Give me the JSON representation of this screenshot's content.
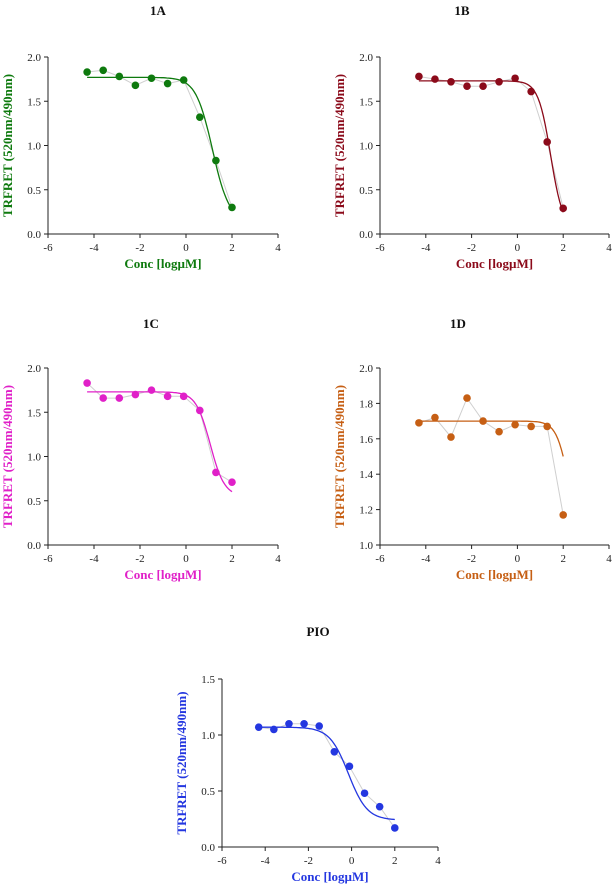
{
  "chart_data": [
    {
      "id": "1A",
      "type": "scatter",
      "title": "1A",
      "xlabel": "Conc [logµM]",
      "ylabel": "TRFRET (520nm/490nm)",
      "xlim": [
        -6,
        4
      ],
      "ylim": [
        0,
        2.0
      ],
      "xticks": [
        -6,
        -4,
        -2,
        0,
        2,
        4
      ],
      "yticks": [
        0,
        0.5,
        1.0,
        1.5,
        2.0
      ],
      "xtick_labels": [
        "-6",
        "-4",
        "-2",
        "0",
        "2",
        "4"
      ],
      "ytick_labels": [
        "0.0",
        "0.5",
        "1.0",
        "1.5",
        "2.0"
      ],
      "color": "#0e7a0e",
      "x": [
        -4.3,
        -3.6,
        -2.9,
        -2.2,
        -1.5,
        -0.8,
        -0.1,
        0.6,
        1.3,
        2.0
      ],
      "y": [
        1.83,
        1.85,
        1.78,
        1.68,
        1.76,
        1.7,
        1.74,
        1.32,
        0.83,
        0.3
      ],
      "fit": {
        "top": 1.77,
        "bottom": 0.14,
        "logEC50": 1.15,
        "hill": 1.2
      }
    },
    {
      "id": "1B",
      "type": "scatter",
      "title": "1B",
      "xlabel": "Conc [logµM]",
      "ylabel": "TRFRET (520nm/490nm)",
      "xlim": [
        -6,
        4
      ],
      "ylim": [
        0,
        2.0
      ],
      "xticks": [
        -6,
        -4,
        -2,
        0,
        2,
        4
      ],
      "yticks": [
        0,
        0.5,
        1.0,
        1.5,
        2.0
      ],
      "xtick_labels": [
        "-6",
        "-4",
        "-2",
        "0",
        "2",
        "4"
      ],
      "ytick_labels": [
        "0.0",
        "0.5",
        "1.0",
        "1.5",
        "2.0"
      ],
      "color": "#8b0a1a",
      "x": [
        -4.3,
        -3.6,
        -2.9,
        -2.2,
        -1.5,
        -0.8,
        -0.1,
        0.6,
        1.3,
        2.0
      ],
      "y": [
        1.78,
        1.75,
        1.72,
        1.67,
        1.67,
        1.72,
        1.76,
        1.61,
        1.04,
        0.29
      ],
      "fit": {
        "top": 1.73,
        "bottom": 0.05,
        "logEC50": 1.45,
        "hill": 1.6
      }
    },
    {
      "id": "1C",
      "type": "scatter",
      "title": "1C",
      "xlabel": "Conc [logµM]",
      "ylabel": "TRFRET (520nm/490nm)",
      "xlim": [
        -6,
        4
      ],
      "ylim": [
        0,
        2.0
      ],
      "xticks": [
        -6,
        -4,
        -2,
        0,
        2,
        4
      ],
      "yticks": [
        0,
        0.5,
        1.0,
        1.5,
        2.0
      ],
      "xtick_labels": [
        "-6",
        "-4",
        "-2",
        "0",
        "2",
        "4"
      ],
      "ytick_labels": [
        "0.0",
        "0.5",
        "1.0",
        "1.5",
        "2.0"
      ],
      "color": "#e020c8",
      "x": [
        -4.3,
        -3.6,
        -2.9,
        -2.2,
        -1.5,
        -0.8,
        -0.1,
        0.6,
        1.3,
        2.0
      ],
      "y": [
        1.83,
        1.66,
        1.66,
        1.7,
        1.75,
        1.68,
        1.68,
        1.52,
        0.82,
        0.71
      ],
      "fit": {
        "top": 1.73,
        "bottom": 0.55,
        "logEC50": 1.05,
        "hill": 1.4
      }
    },
    {
      "id": "1D",
      "type": "scatter",
      "title": "1D",
      "xlabel": "Conc [logµM]",
      "ylabel": "TRFRET (520nm/490nm)",
      "xlim": [
        -6,
        4
      ],
      "ylim": [
        1.0,
        2.0
      ],
      "xticks": [
        -6,
        -4,
        -2,
        0,
        2,
        4
      ],
      "yticks": [
        1.0,
        1.2,
        1.4,
        1.6,
        1.8,
        2.0
      ],
      "xtick_labels": [
        "-6",
        "-4",
        "-2",
        "0",
        "2",
        "4"
      ],
      "ytick_labels": [
        "1.0",
        "1.2",
        "1.4",
        "1.6",
        "1.8",
        "2.0"
      ],
      "color": "#c65f14",
      "x": [
        -4.3,
        -3.6,
        -2.9,
        -2.2,
        -1.5,
        -0.8,
        -0.1,
        0.6,
        1.3,
        2.0
      ],
      "y": [
        1.69,
        1.72,
        1.61,
        1.83,
        1.7,
        1.64,
        1.68,
        1.67,
        1.67,
        1.17
      ],
      "fit": {
        "top": 1.7,
        "bottom": 1.0,
        "logEC50": 2.25,
        "hill": 1.6
      }
    },
    {
      "id": "PIO",
      "type": "scatter",
      "title": "PIO",
      "xlabel": "Conc [logµM]",
      "ylabel": "TRFRET (520nm/490nm)",
      "xlim": [
        -6,
        4
      ],
      "ylim": [
        0,
        1.5
      ],
      "xticks": [
        -6,
        -4,
        -2,
        0,
        2,
        4
      ],
      "yticks": [
        0,
        0.5,
        1.0,
        1.5
      ],
      "xtick_labels": [
        "-6",
        "-4",
        "-2",
        "0",
        "2",
        "4"
      ],
      "ytick_labels": [
        "0.0",
        "0.5",
        "1.0",
        "1.5"
      ],
      "color": "#2437e0",
      "x": [
        -4.3,
        -3.6,
        -2.9,
        -2.2,
        -1.5,
        -0.8,
        -0.1,
        0.6,
        1.3,
        2.0
      ],
      "y": [
        1.07,
        1.05,
        1.1,
        1.1,
        1.08,
        0.85,
        0.72,
        0.48,
        0.36,
        0.17
      ],
      "fit": {
        "top": 1.07,
        "bottom": 0.24,
        "logEC50": -0.15,
        "hill": 1.0
      }
    }
  ]
}
